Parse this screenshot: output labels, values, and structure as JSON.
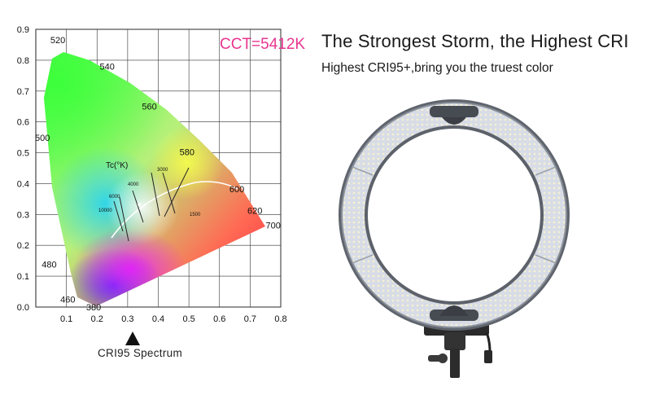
{
  "header": {
    "cct_label": "CCT=5412K",
    "headline": "The Strongest Storm, the Highest CRI",
    "subline": "Highest CRI95+,bring you the truest color"
  },
  "chart_data": {
    "type": "chromaticity-diagram",
    "x_ticks": [
      "0.1",
      "0.2",
      "0.3",
      "0.4",
      "0.5",
      "0.6",
      "0.7",
      "0.8"
    ],
    "y_ticks": [
      "0.0",
      "0.1",
      "0.2",
      "0.3",
      "0.4",
      "0.5",
      "0.6",
      "0.7",
      "0.8",
      "0.9"
    ],
    "xlim": [
      0,
      0.8
    ],
    "ylim": [
      0,
      0.9
    ],
    "grid": true,
    "locus_labels": [
      {
        "nm": "520",
        "x": 0.074,
        "y": 0.834
      },
      {
        "nm": "540",
        "x": 0.23,
        "y": 0.754
      },
      {
        "nm": "560",
        "x": 0.373,
        "y": 0.624
      },
      {
        "nm": "580",
        "x": 0.512,
        "y": 0.487
      },
      {
        "nm": "600",
        "x": 0.627,
        "y": 0.372
      },
      {
        "nm": "620",
        "x": 0.691,
        "y": 0.308
      },
      {
        "nm": "700",
        "x": 0.735,
        "y": 0.265
      },
      {
        "nm": "500",
        "x": 0.008,
        "y": 0.538
      },
      {
        "nm": "480",
        "x": 0.091,
        "y": 0.133
      },
      {
        "nm": "460",
        "x": 0.144,
        "y": 0.03
      },
      {
        "nm": "380",
        "x": 0.175,
        "y": 0.005
      }
    ],
    "planck_label": "Tc(°K)",
    "cct_lines": [
      "10000",
      "6000",
      "4000",
      "3000",
      "1500"
    ],
    "marker_label": "CRI95  Spectrum"
  },
  "product": {
    "type": "ring-light"
  }
}
